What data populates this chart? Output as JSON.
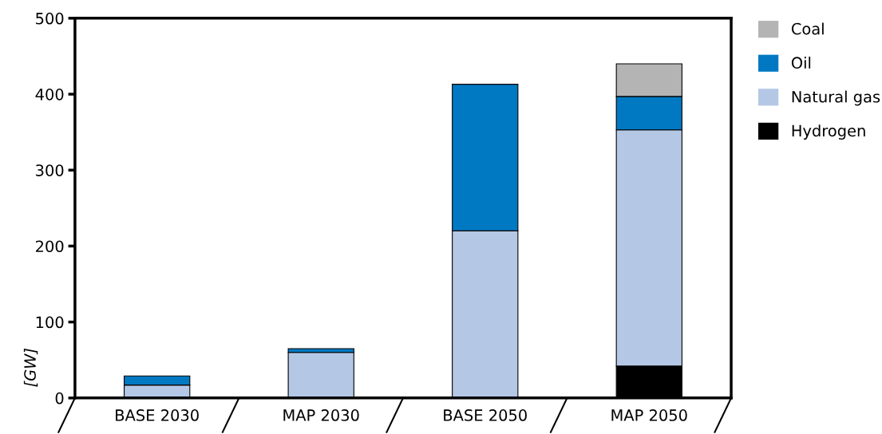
{
  "chart_data": {
    "type": "bar",
    "stacked": true,
    "ylabel": "[GW]",
    "categories": [
      "BASE 2030",
      "MAP 2030",
      "BASE 2050",
      "MAP 2050"
    ],
    "series": [
      {
        "name": "Hydrogen",
        "color": "#000000",
        "values": [
          null,
          null,
          null,
          42
        ]
      },
      {
        "name": "Natural gas",
        "color": "#b4c8e6",
        "values": [
          17,
          60,
          220,
          311
        ]
      },
      {
        "name": "Oil",
        "color": "#0079c2",
        "values": [
          12,
          5,
          193,
          44
        ]
      },
      {
        "name": "Coal",
        "color": "#b4b4b4",
        "values": [
          null,
          null,
          null,
          43
        ]
      }
    ],
    "ylim": [
      0,
      500
    ],
    "yticks": [
      0,
      100,
      200,
      300,
      400,
      500
    ],
    "grid": false,
    "legend": "top right"
  }
}
